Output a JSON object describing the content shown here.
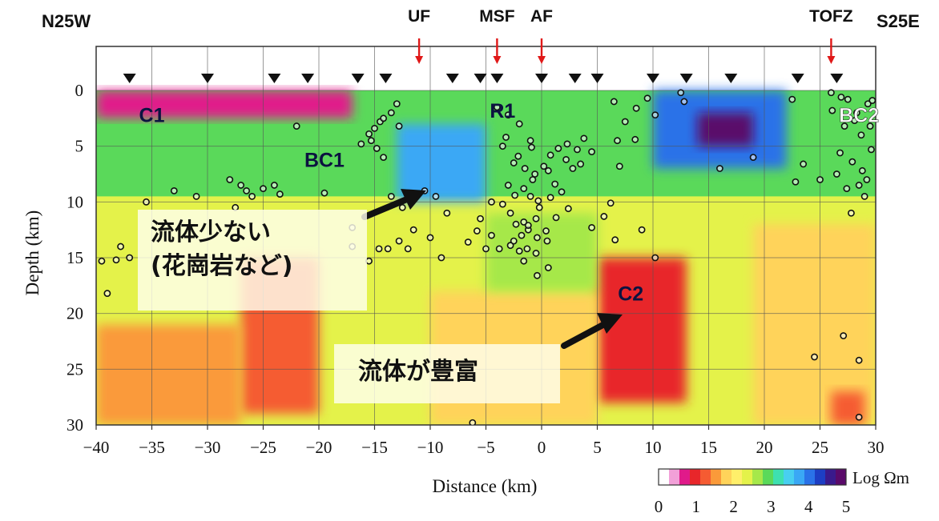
{
  "chart_data": {
    "type": "heatmap",
    "title": "",
    "left_end_label": "N25W",
    "right_end_label": "S25E",
    "xlabel": "Distance (km)",
    "ylabel": "Depth (km)",
    "xlim": [
      -40,
      30
    ],
    "ylim": [
      0,
      30
    ],
    "y_inverted": true,
    "xticks": [
      -40,
      -35,
      -30,
      -25,
      -20,
      -15,
      -10,
      -5,
      0,
      5,
      10,
      15,
      20,
      25,
      30
    ],
    "yticks": [
      0,
      5,
      10,
      15,
      20,
      25,
      30
    ],
    "grid": true,
    "colorbar": {
      "label": "Log Ωm",
      "range": [
        0,
        5
      ],
      "ticks": [
        0,
        1,
        2,
        3,
        4,
        5
      ],
      "colors": [
        "#ffffff",
        "#f2a0d8",
        "#e01a8a",
        "#e8262a",
        "#f55b32",
        "#fa9a3a",
        "#ffd35a",
        "#ffef6a",
        "#e4f24a",
        "#a6e84a",
        "#5ad95a",
        "#3ee0b0",
        "#48cff0",
        "#3aa8f5",
        "#2a72e8",
        "#1d3ec4",
        "#3a1a8c",
        "#5a0a6a"
      ]
    },
    "faults": [
      {
        "name": "UF",
        "x": -11
      },
      {
        "name": "MSF",
        "x": -4
      },
      {
        "name": "AF",
        "x": 0
      },
      {
        "name": "TOFZ",
        "x": 26
      }
    ],
    "stations_x": [
      -37,
      -30,
      -24,
      -21,
      -16.5,
      -14,
      -8,
      -5.5,
      -4,
      0,
      3,
      5,
      10,
      13,
      17,
      23,
      26.5
    ],
    "regions": [
      {
        "label": "C1",
        "x": -35,
        "y": 2.2
      },
      {
        "label": "BC1",
        "x": -19.5,
        "y": 6.2
      },
      {
        "label": "R1",
        "x": -3.5,
        "y": 1.8
      },
      {
        "label": "BC2",
        "x": 28.5,
        "y": 2.2
      },
      {
        "label": "C2",
        "x": 8,
        "y": 18.2
      }
    ],
    "annotations": [
      {
        "lines": [
          "流体少ない",
          "(花崗岩など)"
        ]
      },
      {
        "lines": [
          "流体が豊富"
        ]
      }
    ],
    "resistivity_zones": [
      {
        "x": [
          -40,
          30
        ],
        "y": [
          0,
          30
        ],
        "log_ohm_m": 2.4
      },
      {
        "x": [
          -40,
          30
        ],
        "y": [
          0,
          9.5
        ],
        "log_ohm_m": 3.0
      },
      {
        "x": [
          -40,
          -17
        ],
        "y": [
          0,
          2.5
        ],
        "log_ohm_m": 0.5
      },
      {
        "x": [
          -13,
          -5
        ],
        "y": [
          3,
          10
        ],
        "log_ohm_m": 3.8
      },
      {
        "x": [
          10,
          22
        ],
        "y": [
          0,
          7
        ],
        "log_ohm_m": 4.2
      },
      {
        "x": [
          14,
          19
        ],
        "y": [
          2,
          5
        ],
        "log_ohm_m": 5.0
      },
      {
        "x": [
          -27,
          -20
        ],
        "y": [
          15,
          29
        ],
        "log_ohm_m": 1.3
      },
      {
        "x": [
          5,
          13
        ],
        "y": [
          15,
          28
        ],
        "log_ohm_m": 1.0
      },
      {
        "x": [
          -40,
          -27
        ],
        "y": [
          21,
          30
        ],
        "log_ohm_m": 1.6
      },
      {
        "x": [
          -10,
          5
        ],
        "y": [
          18,
          30
        ],
        "log_ohm_m": 1.8
      },
      {
        "x": [
          -5,
          5
        ],
        "y": [
          11,
          18
        ],
        "log_ohm_m": 2.6
      },
      {
        "x": [
          19,
          30
        ],
        "y": [
          12,
          30
        ],
        "log_ohm_m": 1.8
      },
      {
        "x": [
          26,
          29
        ],
        "y": [
          27,
          30
        ],
        "log_ohm_m": 1.1
      }
    ],
    "hypocenters": [
      [
        -14.5,
        2.8
      ],
      [
        -15,
        3.4
      ],
      [
        -15.5,
        3.9
      ],
      [
        -14.2,
        2.5
      ],
      [
        -15.3,
        4.5
      ],
      [
        -16.2,
        4.8
      ],
      [
        -14.8,
        5.2
      ],
      [
        -14.2,
        6
      ],
      [
        -13,
        1.2
      ],
      [
        -13.5,
        2
      ],
      [
        -12.8,
        3.2
      ],
      [
        -13.5,
        9.5
      ],
      [
        -12.5,
        10.5
      ],
      [
        -11.5,
        12.5
      ],
      [
        -12.8,
        13.5
      ],
      [
        -12,
        14.2
      ],
      [
        -10.5,
        9
      ],
      [
        -9.5,
        9.5
      ],
      [
        -8.5,
        11
      ],
      [
        -10,
        13.2
      ],
      [
        -14.6,
        14.2
      ],
      [
        -13.8,
        14.2
      ],
      [
        -28,
        8
      ],
      [
        -27,
        8.5
      ],
      [
        -26.5,
        9
      ],
      [
        -26,
        9.5
      ],
      [
        -25,
        8.8
      ],
      [
        -24,
        8.5
      ],
      [
        -23.5,
        9.3
      ],
      [
        -31,
        9.5
      ],
      [
        -27.5,
        10.5
      ],
      [
        -33,
        9
      ],
      [
        -19.5,
        9.2
      ],
      [
        -22,
        3.2
      ],
      [
        -38.2,
        15.2
      ],
      [
        -37,
        15
      ],
      [
        -37.8,
        14
      ],
      [
        -35.5,
        10
      ],
      [
        -39.5,
        15.3
      ],
      [
        -39,
        18.2
      ],
      [
        -17,
        12.3
      ],
      [
        -17,
        14
      ],
      [
        -15.5,
        15.3
      ],
      [
        -9,
        15
      ],
      [
        -4,
        1.5
      ],
      [
        -3,
        2.2
      ],
      [
        -2,
        3
      ],
      [
        -3.5,
        5
      ],
      [
        -2.5,
        6.5
      ],
      [
        -1.5,
        7
      ],
      [
        -3,
        8.5
      ],
      [
        -4.5,
        10
      ],
      [
        -5.5,
        11.5
      ],
      [
        -4.5,
        13
      ],
      [
        -2.5,
        13.5
      ],
      [
        -1.8,
        13
      ],
      [
        -1.2,
        12.5
      ],
      [
        -0.5,
        11.5
      ],
      [
        -0.2,
        10.5
      ],
      [
        -1,
        9.5
      ],
      [
        -0.8,
        8
      ],
      [
        0.2,
        6.8
      ],
      [
        0.8,
        5.8
      ],
      [
        1.5,
        5.2
      ],
      [
        2.3,
        4.8
      ],
      [
        3.2,
        5.3
      ],
      [
        3.5,
        6.6
      ],
      [
        4.5,
        5.5
      ],
      [
        2.8,
        7
      ],
      [
        0.5,
        13.5
      ],
      [
        -0.5,
        14.6
      ],
      [
        -1.6,
        15.3
      ],
      [
        -2.3,
        12
      ],
      [
        -1,
        4.5
      ],
      [
        -1.6,
        11.8
      ],
      [
        -2.8,
        11
      ],
      [
        -3.5,
        10.2
      ],
      [
        -2.4,
        9.4
      ],
      [
        -1.6,
        8.8
      ],
      [
        -0.6,
        7.5
      ],
      [
        0.6,
        7.2
      ],
      [
        1.2,
        8.4
      ],
      [
        0.8,
        9.6
      ],
      [
        -0.4,
        13.2
      ],
      [
        0.4,
        12.6
      ],
      [
        1.3,
        11.4
      ],
      [
        2.4,
        10.6
      ],
      [
        -5,
        14.2
      ],
      [
        -3.8,
        14.2
      ],
      [
        -2,
        14.4
      ],
      [
        -0.4,
        16.6
      ],
      [
        0.6,
        15.9
      ],
      [
        -1.2,
        12.1
      ],
      [
        -5.8,
        12.6
      ],
      [
        -6.6,
        13.6
      ],
      [
        -2.8,
        13.9
      ],
      [
        -1.3,
        14.2
      ],
      [
        -0.9,
        5.1
      ],
      [
        -3.2,
        4.2
      ],
      [
        2.2,
        6.2
      ],
      [
        3.8,
        4.3
      ],
      [
        -2.1,
        5.9
      ],
      [
        1.8,
        9.1
      ],
      [
        -0.3,
        9.9
      ],
      [
        6.5,
        1
      ],
      [
        7.5,
        2.8
      ],
      [
        6.8,
        4.5
      ],
      [
        8.5,
        1.6
      ],
      [
        7,
        6.8
      ],
      [
        8.4,
        4.4
      ],
      [
        9.5,
        0.7
      ],
      [
        10.2,
        2.2
      ],
      [
        12.8,
        1
      ],
      [
        12.5,
        0.2
      ],
      [
        6.2,
        10.1
      ],
      [
        4.5,
        12.3
      ],
      [
        5.6,
        11.3
      ],
      [
        6.6,
        13.4
      ],
      [
        9,
        12.5
      ],
      [
        10.2,
        15
      ],
      [
        26,
        0.2
      ],
      [
        27.5,
        0.8
      ],
      [
        28.3,
        2
      ],
      [
        29.3,
        1.2
      ],
      [
        27.2,
        3.2
      ],
      [
        28.7,
        4
      ],
      [
        29.6,
        5.3
      ],
      [
        26.8,
        5.6
      ],
      [
        27.9,
        6.4
      ],
      [
        28.8,
        7.2
      ],
      [
        29.2,
        8
      ],
      [
        26.5,
        7.5
      ],
      [
        27.4,
        8.8
      ],
      [
        29,
        9.5
      ],
      [
        26.1,
        1.8
      ],
      [
        27.8,
        11
      ],
      [
        22.5,
        0.8
      ],
      [
        23.5,
        6.6
      ],
      [
        25,
        8
      ],
      [
        19,
        6
      ],
      [
        16,
        7
      ],
      [
        22.8,
        8.2
      ],
      [
        29.5,
        3.2
      ],
      [
        28.1,
        2.7
      ],
      [
        26.9,
        0.6
      ],
      [
        29.7,
        0.9
      ],
      [
        28.5,
        8.5
      ],
      [
        27.1,
        22
      ],
      [
        28.5,
        24.2
      ],
      [
        24.5,
        23.9
      ],
      [
        28.5,
        29.3
      ],
      [
        -6.2,
        29.8
      ]
    ]
  }
}
